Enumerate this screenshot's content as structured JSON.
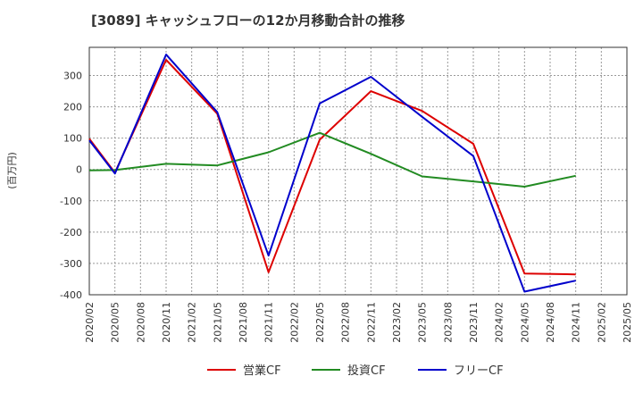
{
  "chart_data": {
    "type": "line",
    "title": "[3089]  キャッシュフローの12か月移動合計の推移",
    "ylabel": "(百万円)",
    "xlabel": "",
    "ylim": [
      -400,
      390
    ],
    "yticks": [
      -400,
      -300,
      -200,
      -100,
      0,
      100,
      200,
      300
    ],
    "categories": [
      "2020/02",
      "2020/05",
      "2020/08",
      "2020/11",
      "2021/02",
      "2021/05",
      "2021/08",
      "2021/11",
      "2022/02",
      "2022/05",
      "2022/08",
      "2022/11",
      "2023/02",
      "2023/05",
      "2023/08",
      "2023/11",
      "2024/02",
      "2024/05",
      "2024/08",
      "2024/11",
      "2025/02",
      "2025/05"
    ],
    "grid": true,
    "legend_position": "bottom",
    "series": [
      {
        "name": "営業CF",
        "color": "#dd0000",
        "values": [
          98,
          -10,
          null,
          350,
          null,
          178,
          null,
          -328,
          null,
          95,
          null,
          250,
          null,
          187,
          null,
          82,
          null,
          -332,
          null,
          -335,
          null,
          null
        ]
      },
      {
        "name": "投資CF",
        "color": "#228B22",
        "values": [
          -3,
          -2,
          null,
          18,
          null,
          13,
          null,
          55,
          null,
          117,
          null,
          50,
          null,
          -22,
          null,
          -38,
          null,
          -55,
          null,
          -20,
          null,
          null
        ]
      },
      {
        "name": "フリーCF",
        "color": "#0000cc",
        "values": [
          93,
          -13,
          null,
          367,
          null,
          183,
          null,
          -275,
          null,
          211,
          null,
          296,
          null,
          168,
          null,
          43,
          null,
          -390,
          null,
          -355,
          null,
          null
        ]
      }
    ]
  }
}
